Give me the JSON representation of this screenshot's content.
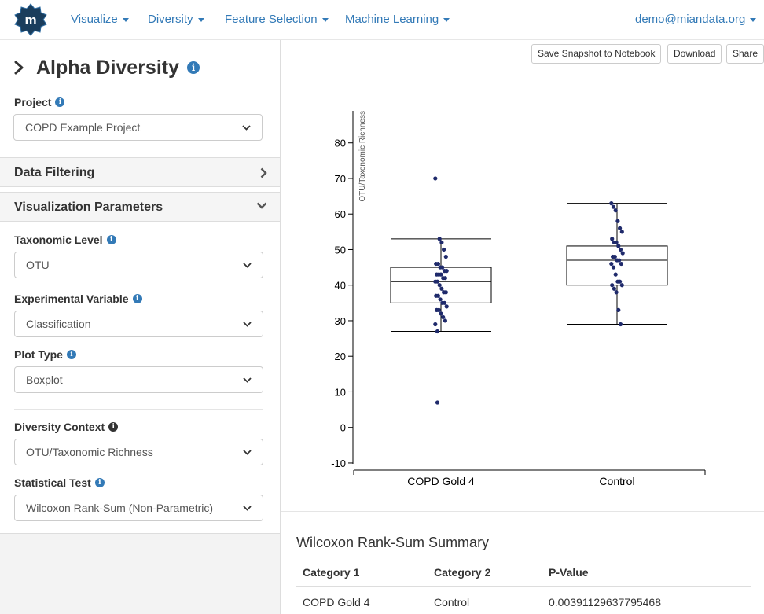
{
  "nav": {
    "items": [
      "Visualize",
      "Diversity",
      "Feature Selection",
      "Machine Learning"
    ],
    "user": "demo@miandata.org"
  },
  "sidebar": {
    "title": "Alpha Diversity",
    "project": {
      "label": "Project",
      "value": "COPD Example Project"
    },
    "sections": {
      "data_filtering": "Data Filtering",
      "visualization": "Visualization Parameters"
    },
    "taxonomic_level": {
      "label": "Taxonomic Level",
      "value": "OTU"
    },
    "experimental_variable": {
      "label": "Experimental Variable",
      "value": "Classification"
    },
    "plot_type": {
      "label": "Plot Type",
      "value": "Boxplot"
    },
    "diversity_context": {
      "label": "Diversity Context",
      "value": "OTU/Taxonomic Richness"
    },
    "statistical_test": {
      "label": "Statistical Test",
      "value": "Wilcoxon Rank-Sum (Non-Parametric)"
    }
  },
  "toolbar": {
    "save_snapshot": "Save Snapshot to Notebook",
    "download": "Download",
    "share": "Share"
  },
  "chart_data": {
    "type": "box",
    "ylabel": "OTU/Taxonomic Richness",
    "yticks": [
      -10,
      0,
      10,
      20,
      30,
      40,
      50,
      60,
      70,
      80
    ],
    "ylim": [
      -12,
      89
    ],
    "categories": [
      "COPD Gold 4",
      "Control"
    ],
    "boxes": [
      {
        "whisker_low": 27,
        "q1": 35,
        "median": 41,
        "q3": 45,
        "whisker_high": 53,
        "points": [
          70,
          7,
          53,
          52,
          50,
          48,
          46,
          46,
          45,
          45,
          44,
          44,
          43,
          43,
          43,
          42,
          42,
          41,
          41,
          40,
          39,
          38,
          38,
          37,
          37,
          36,
          35,
          35,
          34,
          33,
          33,
          32,
          31,
          30,
          29,
          27
        ]
      },
      {
        "whisker_low": 29,
        "q1": 40,
        "median": 47,
        "q3": 51,
        "whisker_high": 63,
        "points": [
          63,
          62,
          61,
          58,
          56,
          55,
          53,
          52,
          52,
          51,
          50,
          49,
          48,
          48,
          47,
          47,
          46,
          46,
          45,
          43,
          41,
          41,
          40,
          40,
          39,
          38,
          33,
          29
        ]
      }
    ],
    "point_color": "#1f2a6b"
  },
  "summary": {
    "title": "Wilcoxon Rank-Sum Summary",
    "columns": [
      "Category 1",
      "Category 2",
      "P-Value"
    ],
    "rows": [
      [
        "COPD Gold 4",
        "Control",
        "0.00391129637795468"
      ]
    ]
  },
  "colors": {
    "link": "#337ab7",
    "logo": "#1a3d5c"
  }
}
